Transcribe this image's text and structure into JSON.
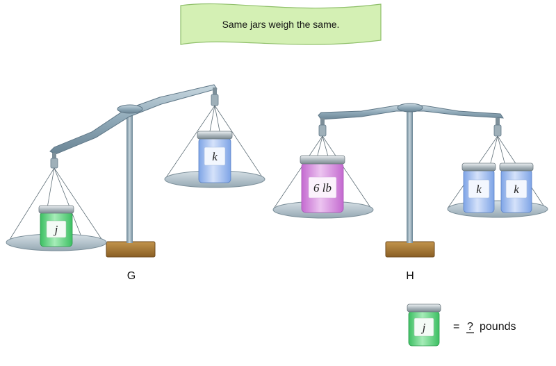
{
  "banner": {
    "text": "Same jars weigh the same."
  },
  "scales": {
    "g": {
      "label": "G",
      "left_jar": "j",
      "right_jar": "k"
    },
    "h": {
      "label": "H",
      "left_jar": "6 lb",
      "right_jars": [
        "k",
        "k"
      ]
    }
  },
  "answer": {
    "jar": "j",
    "equals": "=",
    "unknown": "?",
    "unit": "pounds"
  },
  "colors": {
    "banner_fill": "#d4f0b4",
    "jar_green": "#6fd98c",
    "jar_blue": "#a9c3f2",
    "jar_pink": "#d99be0",
    "beam": "#8fa9b8",
    "pan": "#b9c7cf",
    "base": "#a77a37"
  }
}
